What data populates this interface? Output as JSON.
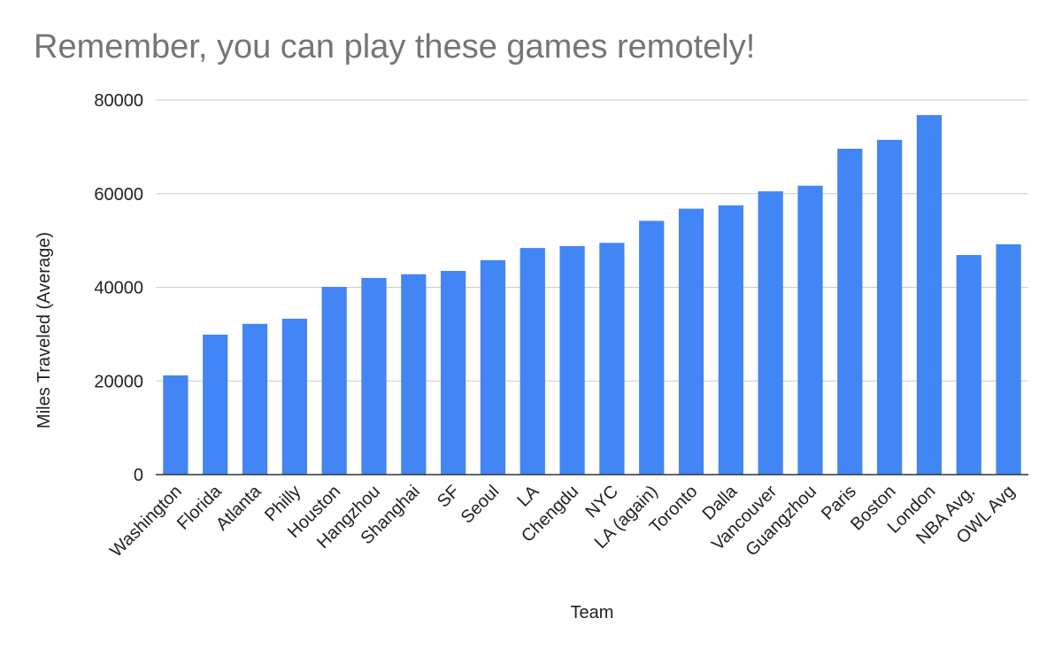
{
  "chart_data": {
    "type": "bar",
    "title": "Remember, you can play these games remotely!",
    "xlabel": "Team",
    "ylabel": "Miles Traveled (Average)",
    "ylim": [
      0,
      80000
    ],
    "yticks": [
      0,
      20000,
      40000,
      60000,
      80000
    ],
    "grid": true,
    "legend": "none",
    "bar_color": "#4285f4",
    "categories": [
      "Washington",
      "Florida",
      "Atlanta",
      "Philly",
      "Houston",
      "Hangzhou",
      "Shanghai",
      "SF",
      "Seoul",
      "LA",
      "Chengdu",
      "NYC",
      "LA (again)",
      "Toronto",
      "Dalla",
      "Vancouver",
      "Guangzhou",
      "Paris",
      "Boston",
      "London",
      "NBA Avg.",
      "OWL Avg"
    ],
    "values": [
      21200,
      29900,
      32200,
      33300,
      40100,
      42000,
      42800,
      43500,
      45800,
      48400,
      48800,
      49500,
      54200,
      56800,
      57500,
      60500,
      61700,
      69600,
      71500,
      76800,
      46900,
      49200
    ]
  }
}
